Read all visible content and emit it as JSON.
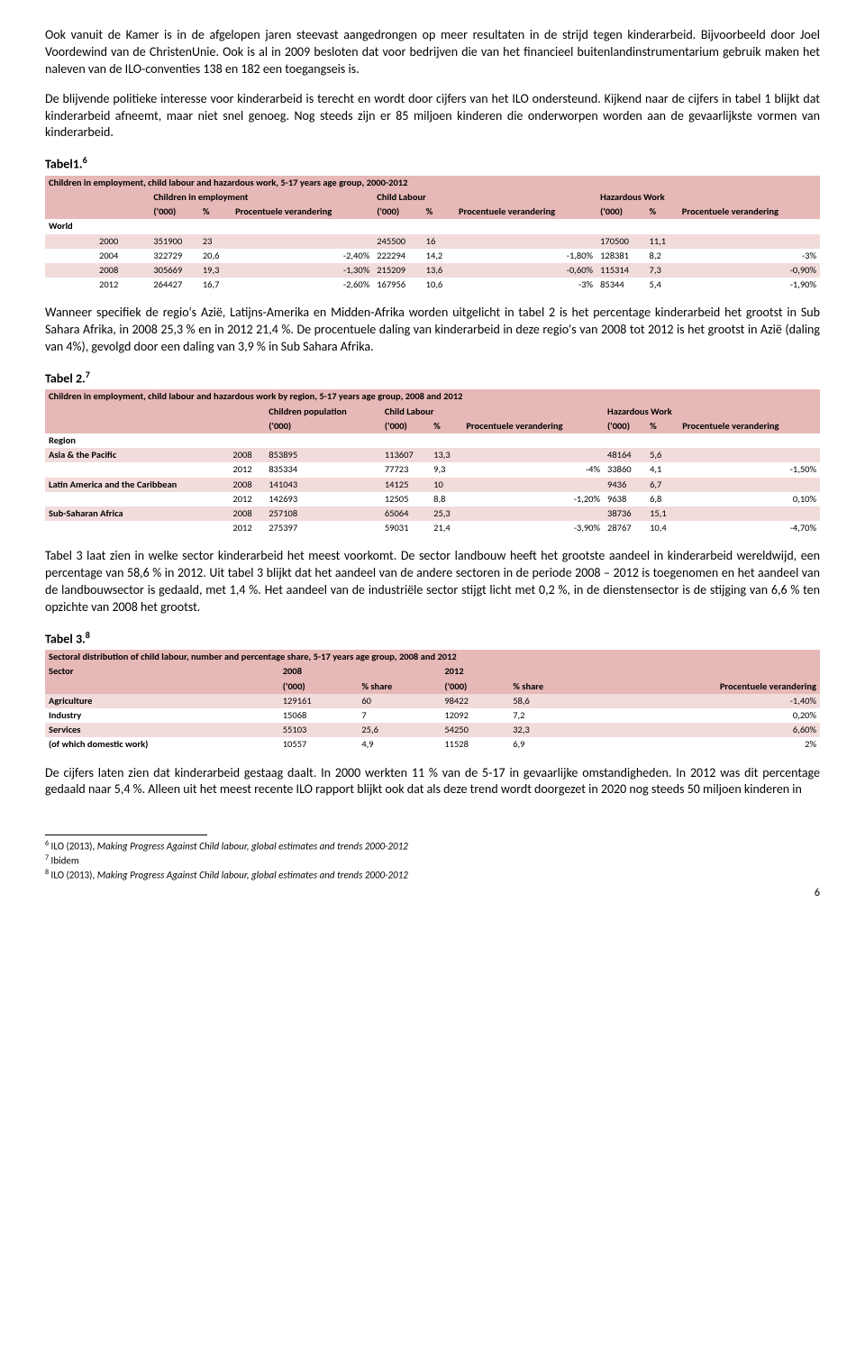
{
  "para1": "Ook vanuit de Kamer is in de afgelopen jaren steevast aangedrongen op meer resultaten in de strijd tegen kinderarbeid. Bijvoorbeeld door Joel Voordewind van de ChristenUnie. Ook is al in 2009 besloten dat voor bedrijven die van het financieel buitenlandinstrumentarium gebruik maken het naleven van de ILO-conventies 138 en 182 een toegangseis is.",
  "para2": "De blijvende politieke interesse voor kinderarbeid is terecht en wordt door cijfers van het ILO ondersteund. Kijkend naar de cijfers in tabel 1 blijkt dat kinderarbeid afneemt, maar niet snel genoeg. Nog steeds zijn er 85 miljoen kinderen die onderworpen worden aan de gevaarlijkste vormen van kinderarbeid.",
  "tabel1_label": "Tabel1.",
  "tabel1_sup": "6",
  "t1": {
    "title": "Children in employment, child labour and hazardous work, 5-17 years age group, 2000-2012",
    "g1": "Children in employment",
    "g2": "Child Labour",
    "g3": "Hazardous Work",
    "c000": "('000)",
    "cpct": "%",
    "cpv": "Procentuele verandering",
    "world": "World",
    "rows": [
      {
        "y": "2000",
        "a": "351900",
        "ap": "23",
        "apv": "",
        "b": "245500",
        "bp": "16",
        "bpv": "",
        "c": "170500",
        "cp": "11,1",
        "cpv": ""
      },
      {
        "y": "2004",
        "a": "322729",
        "ap": "20,6",
        "apv": "-2,40%",
        "b": "222294",
        "bp": "14,2",
        "bpv": "-1,80%",
        "c": "128381",
        "cp": "8,2",
        "cpv": "-3%"
      },
      {
        "y": "2008",
        "a": "305669",
        "ap": "19,3",
        "apv": "-1,30%",
        "b": "215209",
        "bp": "13,6",
        "bpv": "-0,60%",
        "c": "115314",
        "cp": "7,3",
        "cpv": "-0,90%"
      },
      {
        "y": "2012",
        "a": "264427",
        "ap": "16,7",
        "apv": "-2,60%",
        "b": "167956",
        "bp": "10,6",
        "bpv": "-3%",
        "c": "85344",
        "cp": "5,4",
        "cpv": "-1,90%"
      }
    ]
  },
  "para3": "Wanneer specifiek de regio's Azië, Latijns-Amerika en Midden-Afrika worden uitgelicht in tabel 2 is het percentage kinderarbeid het grootst in Sub Sahara Afrika, in 2008 25,3 % en in 2012 21,4 %. De procentuele daling van kinderarbeid in deze regio's van 2008 tot 2012 is het grootst in Azië (daling van 4%), gevolgd door een daling van 3,9 % in Sub Sahara Afrika.",
  "tabel2_label": "Tabel 2.",
  "tabel2_sup": "7",
  "t2": {
    "title": "Children in employment, child labour and hazardous work by region, 5-17 years age group, 2008 and 2012",
    "g1": "Children population",
    "g2": "Child Labour",
    "g3": "Hazardous Work",
    "c000": "('000)",
    "cpct": "%",
    "cpv": "Procentuele verandering",
    "region": "Region",
    "rows": [
      {
        "r": "Asia & the Pacific",
        "y": "2008",
        "a": "853895",
        "b": "113607",
        "bp": "13,3",
        "bpv": "",
        "c": "48164",
        "cp": "5,6",
        "cpv": ""
      },
      {
        "r": "",
        "y": "2012",
        "a": "835334",
        "b": "77723",
        "bp": "9,3",
        "bpv": "-4%",
        "c": "33860",
        "cp": "4,1",
        "cpv": "-1,50%"
      },
      {
        "r": "Latin America and the Caribbean",
        "y": "2008",
        "a": "141043",
        "b": "14125",
        "bp": "10",
        "bpv": "",
        "c": "9436",
        "cp": "6,7",
        "cpv": ""
      },
      {
        "r": "",
        "y": "2012",
        "a": "142693",
        "b": "12505",
        "bp": "8,8",
        "bpv": "-1,20%",
        "c": "9638",
        "cp": "6,8",
        "cpv": "0,10%"
      },
      {
        "r": "Sub-Saharan Africa",
        "y": "2008",
        "a": "257108",
        "b": "65064",
        "bp": "25,3",
        "bpv": "",
        "c": "38736",
        "cp": "15,1",
        "cpv": ""
      },
      {
        "r": "",
        "y": "2012",
        "a": "275397",
        "b": "59031",
        "bp": "21,4",
        "bpv": "-3,90%",
        "c": "28767",
        "cp": "10,4",
        "cpv": "-4,70%"
      }
    ]
  },
  "para4": "Tabel 3 laat zien in welke sector kinderarbeid het meest voorkomt. De sector landbouw heeft het grootste aandeel in kinderarbeid wereldwijd, een percentage van 58,6 % in 2012. Uit tabel 3 blijkt dat het aandeel van de andere sectoren in de periode 2008 – 2012 is toegenomen en het aandeel van de landbouwsector is gedaald, met 1,4 %. Het aandeel van de industriële sector stijgt licht met 0,2 %, in de dienstensector is de stijging van 6,6 % ten opzichte van 2008 het grootst.",
  "tabel3_label": "Tabel 3.",
  "tabel3_sup": "8",
  "t3": {
    "title": "Sectoral distribution of child labour, number and percentage share, 5-17 years age group, 2008 and 2012",
    "sector": "Sector",
    "y2008": "2008",
    "y2012": "2012",
    "c000": "('000)",
    "cshare": "% share",
    "cpv": "Procentuele verandering",
    "rows": [
      {
        "s": "Agriculture",
        "a": "129161",
        "ap": "60",
        "b": "98422",
        "bp": "58,6",
        "pv": "-1,40%"
      },
      {
        "s": "Industry",
        "a": "15068",
        "ap": "7",
        "b": "12092",
        "bp": "7,2",
        "pv": "0,20%"
      },
      {
        "s": "Services",
        "a": "55103",
        "ap": "25,6",
        "b": "54250",
        "bp": "32,3",
        "pv": "6,60%"
      },
      {
        "s": "(of which domestic work)",
        "a": "10557",
        "ap": "4,9",
        "b": "11528",
        "bp": "6,9",
        "pv": "2%"
      }
    ]
  },
  "para5": "De cijfers laten zien dat kinderarbeid gestaag daalt. In 2000 werkten 11 % van de 5-17 in gevaarlijke omstandigheden. In 2012 was dit percentage gedaald naar 5,4 %. Alleen uit het meest recente ILO rapport blijkt ook dat als deze trend wordt doorgezet in 2020 nog steeds 50 miljoen kinderen in",
  "fn6_sup": "6",
  "fn6a": " ILO (2013), ",
  "fn6i": "Making Progress Against Child labour, global estimates and trends 2000-2012",
  "fn7_sup": "7",
  "fn7": " Ibidem",
  "fn8_sup": "8",
  "fn8a": " ILO (2013), ",
  "fn8i": "Making Progress Against Child labour, global estimates and trends 2000-2012",
  "pagenum": "6",
  "colors": {
    "header_bg": "#e6b8b7",
    "even_bg": "#f2dcdb",
    "text": "#000000",
    "bg": "#ffffff"
  }
}
